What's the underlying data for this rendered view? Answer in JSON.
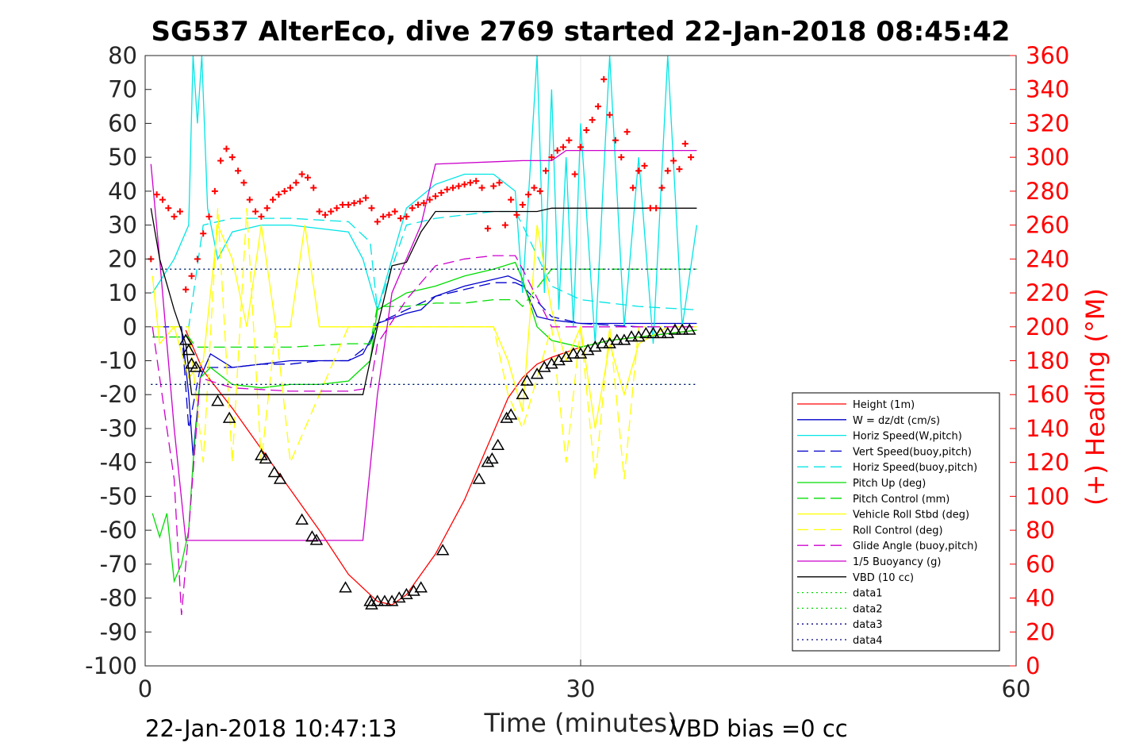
{
  "chart_data": {
    "type": "line",
    "title": "SG537 AlterEco, dive 2769 started 22-Jan-2018 08:45:42",
    "xlabel": "Time (minutes)",
    "ylabel": "",
    "y2label": "(+) Heading (°M)",
    "xlim": [
      0,
      60
    ],
    "ylim": [
      -100,
      80
    ],
    "y2lim": [
      0,
      360
    ],
    "xticks": [
      0,
      30,
      60
    ],
    "yticks": [
      80,
      70,
      60,
      50,
      40,
      30,
      20,
      10,
      0,
      -10,
      -20,
      -30,
      -40,
      -50,
      -60,
      -70,
      -80,
      -90,
      -100
    ],
    "y2ticks": [
      360,
      340,
      320,
      300,
      280,
      260,
      240,
      220,
      200,
      180,
      160,
      140,
      120,
      100,
      80,
      60,
      40,
      20,
      0
    ],
    "grid": "x-only",
    "legend_position": "lower-right",
    "footer_left": "22-Jan-2018 10:47:13",
    "footer_right": "VBD bias =0 cc",
    "colors": {
      "height": "#ff0000",
      "w": "#0000cc",
      "horiz_speed": "#00e5e5",
      "pitch": "#00dd00",
      "roll": "#ffff00",
      "glide": "#cc00cc",
      "buoyancy": "#cc00cc",
      "vbd": "#000000",
      "heading": "#ff0000",
      "data3": "#000080"
    },
    "series": [
      {
        "name": "Height (1m)",
        "style": "solid",
        "color": "#ff0000",
        "x": [
          2.8,
          4,
          6,
          8,
          10,
          12,
          14,
          16,
          17,
          18,
          20,
          22,
          24,
          25,
          26,
          27,
          28,
          30,
          32,
          34,
          36,
          38
        ],
        "y": [
          -1,
          -13,
          -24,
          -36,
          -48,
          -60,
          -73,
          -81,
          -82,
          -79,
          -67,
          -51,
          -31,
          -21,
          -15,
          -11,
          -9,
          -6,
          -4,
          -3,
          -2,
          -1
        ]
      },
      {
        "name": "W = dz/dt (cm/s)",
        "style": "solid",
        "color": "#0000cc",
        "x": [
          0.5,
          2.5,
          3,
          3.3,
          3.8,
          4.5,
          6,
          8,
          10,
          12,
          14,
          15,
          15.5,
          16,
          18,
          19,
          20,
          22,
          24,
          25,
          26,
          27,
          28,
          30,
          32,
          34,
          36,
          38
        ],
        "y": [
          0,
          0,
          -20,
          -38,
          -15,
          -8,
          -12,
          -11,
          -10,
          -10,
          -10,
          -8,
          -4,
          1,
          4,
          5,
          9,
          12,
          14,
          15,
          13,
          3,
          2,
          1,
          1,
          1,
          1,
          1
        ]
      },
      {
        "name": "Horiz Speed(W,pitch)",
        "style": "solid",
        "color": "#00e5e5",
        "x": [
          0.5,
          2,
          3,
          3.3,
          3.6,
          3.9,
          4.3,
          5,
          6,
          8,
          10,
          12,
          14,
          15,
          16,
          18,
          20,
          22,
          24,
          25.5,
          26,
          27,
          27.5,
          28,
          28.5,
          29,
          29.5,
          30,
          31,
          32,
          33,
          34,
          35,
          36,
          37,
          38
        ],
        "y": [
          10,
          20,
          30,
          80,
          60,
          80,
          35,
          20,
          28,
          30,
          30,
          29,
          28,
          20,
          5,
          35,
          42,
          45,
          45,
          40,
          10,
          80,
          10,
          70,
          5,
          50,
          0,
          60,
          -5,
          80,
          0,
          50,
          -5,
          80,
          0,
          30
        ]
      },
      {
        "name": "Vert Speed(buoy,pitch)",
        "style": "dashed",
        "color": "#0000cc",
        "x": [
          0.5,
          2.5,
          3,
          3.8,
          6,
          8,
          10,
          12,
          14,
          15.5,
          16,
          18,
          20,
          22,
          24,
          25.5,
          26,
          28,
          30,
          34,
          38
        ],
        "y": [
          0,
          0,
          -30,
          -12,
          -12,
          -11,
          -11,
          -10,
          -10,
          -5,
          1,
          5,
          9,
          11,
          13,
          13,
          12,
          3,
          1,
          0,
          0
        ]
      },
      {
        "name": "Horiz Speed(buoy,pitch)",
        "style": "dashed",
        "color": "#00e5e5",
        "x": [
          0.5,
          3,
          4,
          6,
          10,
          14,
          15.5,
          16,
          18,
          20,
          22,
          24,
          25.5,
          26,
          28,
          30,
          34,
          38
        ],
        "y": [
          0,
          0,
          30,
          32,
          32,
          31,
          25,
          5,
          30,
          32,
          33,
          34,
          34,
          30,
          12,
          8,
          6,
          5
        ]
      },
      {
        "name": "Pitch Up (deg)",
        "style": "solid",
        "color": "#00dd00",
        "x": [
          0.5,
          1,
          1.5,
          2,
          2.5,
          3,
          3.3,
          3.8,
          4.5,
          6,
          8,
          10,
          12,
          14,
          15.5,
          16,
          18,
          20,
          22,
          24,
          25.5,
          26,
          27,
          28,
          30,
          32,
          34,
          36,
          38
        ],
        "y": [
          -55,
          -62,
          -55,
          -75,
          -70,
          -60,
          -40,
          -15,
          -12,
          -17,
          -18,
          -17,
          -17,
          -16,
          -10,
          5,
          10,
          12,
          15,
          17,
          19,
          14,
          0,
          -4,
          -6,
          -4,
          -3,
          -2,
          -1
        ]
      },
      {
        "name": "Pitch Control (mm)",
        "style": "dashed",
        "color": "#00dd00",
        "x": [
          0.5,
          3,
          3.5,
          5,
          10,
          14,
          15.5,
          16,
          18,
          20,
          22,
          24,
          25.5,
          26,
          28,
          30,
          34,
          38
        ],
        "y": [
          -3,
          -3,
          -6,
          -6,
          -6,
          -5,
          -5,
          6,
          6,
          7,
          7,
          8,
          8,
          6,
          17,
          17,
          17,
          17
        ]
      },
      {
        "name": "Vehicle Roll Stbd (deg)",
        "style": "solid",
        "color": "#ffff00",
        "x": [
          0.5,
          1,
          2,
          3,
          4,
          5,
          6,
          7,
          8,
          9,
          10,
          11,
          12,
          14,
          16,
          18,
          20,
          22,
          24,
          25,
          26,
          27,
          28,
          29,
          30,
          31,
          32,
          33,
          34,
          36,
          38
        ],
        "y": [
          15,
          -5,
          0,
          -15,
          -10,
          30,
          20,
          0,
          30,
          0,
          0,
          30,
          0,
          0,
          0,
          0,
          0,
          0,
          0,
          -10,
          -25,
          30,
          5,
          -10,
          0,
          -30,
          -5,
          -20,
          -5,
          0,
          0
        ]
      },
      {
        "name": "Roll Control (deg)",
        "style": "dashed",
        "color": "#ffff00",
        "x": [
          0.5,
          3,
          4,
          5,
          6,
          7,
          8,
          9,
          10,
          14,
          18,
          22,
          24,
          25,
          26,
          28,
          29,
          30,
          31,
          32,
          33,
          34,
          36,
          38
        ],
        "y": [
          0,
          0,
          -40,
          35,
          -40,
          35,
          -40,
          0,
          -40,
          0,
          0,
          0,
          0,
          -20,
          -30,
          0,
          -40,
          0,
          -45,
          0,
          -45,
          0,
          0,
          0
        ]
      },
      {
        "name": "Glide Angle (buoy,pitch)",
        "style": "dashed",
        "color": "#cc00cc",
        "x": [
          0.5,
          1.5,
          2,
          2.5,
          3,
          3.8,
          6,
          10,
          14,
          15.5,
          16,
          18,
          20,
          22,
          24,
          25.5,
          26,
          28,
          30,
          34,
          38
        ],
        "y": [
          0,
          -30,
          -45,
          -85,
          -60,
          -15,
          -18,
          -19,
          -19,
          -18,
          -5,
          8,
          18,
          20,
          21,
          21,
          17,
          0,
          0,
          0,
          0
        ]
      },
      {
        "name": "1/5 Buoyancy (g)",
        "style": "solid",
        "color": "#cc00cc",
        "x": [
          0.4,
          1,
          2,
          2.8,
          3.2,
          4,
          10,
          14,
          15,
          16,
          17,
          18,
          19,
          20,
          26,
          27,
          28,
          29,
          30,
          34,
          38
        ],
        "y": [
          48,
          20,
          -30,
          -63,
          -63,
          -63,
          -63,
          -63,
          -63,
          -20,
          10,
          20,
          30,
          48,
          49,
          49,
          49,
          52,
          52,
          52,
          52
        ]
      },
      {
        "name": "VBD (10 cc)",
        "style": "solid",
        "color": "#000000",
        "x": [
          0.4,
          1,
          2,
          2.8,
          3.2,
          5,
          10,
          14,
          15,
          16,
          17,
          18,
          19,
          20,
          26,
          27,
          28,
          30,
          34,
          38
        ],
        "y": [
          35,
          20,
          5,
          -5,
          -20,
          -20,
          -20,
          -20,
          -20,
          0,
          18,
          19,
          28,
          34,
          34,
          34,
          35,
          35,
          35,
          35
        ]
      },
      {
        "name": "data1",
        "style": "dotted",
        "color": "#00dd00",
        "x": [
          0.4,
          38
        ],
        "y": [
          17,
          17
        ]
      },
      {
        "name": "data2",
        "style": "dotted",
        "color": "#00dd00",
        "x": [
          0.4,
          38
        ],
        "y": [
          -17,
          -17
        ]
      },
      {
        "name": "data3",
        "style": "dotted",
        "color": "#000080",
        "x": [
          0.4,
          38
        ],
        "y": [
          17,
          17
        ]
      },
      {
        "name": "data4",
        "style": "dotted",
        "color": "#000080",
        "x": [
          0.4,
          38
        ],
        "y": [
          -17,
          -17
        ]
      }
    ],
    "heading_marks": {
      "x": [
        0.4,
        0.8,
        1.2,
        1.6,
        2,
        2.4,
        2.8,
        3.2,
        3.6,
        4,
        4.4,
        4.8,
        5.2,
        5.6,
        6,
        6.4,
        6.8,
        7.2,
        7.6,
        8,
        8.4,
        8.8,
        9.2,
        9.6,
        10,
        10.4,
        10.8,
        11.2,
        11.6,
        12,
        12.4,
        12.8,
        13.2,
        13.6,
        14,
        14.4,
        14.8,
        15.2,
        15.6,
        16,
        16.4,
        16.8,
        17.2,
        17.6,
        18,
        18.4,
        18.8,
        19.2,
        19.6,
        20,
        20.4,
        20.8,
        21.2,
        21.6,
        22,
        22.4,
        22.8,
        23.2,
        23.6,
        24,
        24.4,
        24.8,
        25.2,
        25.6,
        26,
        26.4,
        26.8,
        27.2,
        27.6,
        28,
        28.4,
        28.8,
        29.2,
        29.6,
        30,
        30.4,
        30.8,
        31.2,
        31.6,
        32,
        32.4,
        32.8,
        33.2,
        33.6,
        34,
        34.4,
        34.8,
        35.2,
        35.6,
        36,
        36.4,
        36.8,
        37.2,
        37.6
      ],
      "y": [
        240,
        278,
        275,
        270,
        265,
        268,
        222,
        230,
        240,
        255,
        265,
        280,
        298,
        305,
        300,
        292,
        285,
        275,
        268,
        265,
        270,
        275,
        278,
        280,
        282,
        285,
        290,
        288,
        282,
        268,
        266,
        268,
        270,
        272,
        272,
        273,
        274,
        276,
        270,
        262,
        265,
        266,
        268,
        264,
        265,
        270,
        272,
        273,
        275,
        277,
        279,
        281,
        282,
        283,
        284,
        285,
        286,
        282,
        258,
        283,
        285,
        260,
        275,
        266,
        272,
        278,
        282,
        280,
        292,
        300,
        304,
        306,
        310,
        290,
        306,
        316,
        322,
        330,
        346,
        325,
        310,
        300,
        315,
        282,
        292,
        295,
        270,
        270,
        282,
        292,
        298,
        293,
        308,
        300
      ]
    },
    "profile_marks": {
      "x": [
        2.8,
        3,
        3.2,
        3.5,
        5,
        5.8,
        8,
        8.3,
        8.9,
        9.3,
        10.8,
        11.5,
        11.8,
        13.8,
        15.5,
        15.6,
        16,
        16.5,
        17,
        17.5,
        18,
        18.5,
        19,
        20.5,
        23,
        23.6,
        23.9,
        24.3,
        24.9,
        25.2,
        26,
        26.3,
        27,
        27.5,
        28,
        28.5,
        29,
        29.5,
        30,
        30.5,
        31,
        31.5,
        32,
        32.5,
        33,
        33.5,
        34,
        34.5,
        35,
        35.5,
        36,
        36.5,
        37,
        37.5
      ],
      "y": [
        -4,
        -7,
        -11,
        -12,
        -22,
        -27,
        -38,
        -39,
        -43,
        -45,
        -57,
        -62,
        -63,
        -77,
        -81,
        -82,
        -81,
        -81,
        -81,
        -80,
        -79,
        -78,
        -77,
        -66,
        -45,
        -40,
        -39,
        -35,
        -27,
        -26,
        -20,
        -16,
        -14,
        -12,
        -11,
        -10,
        -9,
        -8,
        -8,
        -7,
        -6,
        -5,
        -5,
        -4,
        -4,
        -3,
        -3,
        -2,
        -2,
        -2,
        -2,
        -1,
        -1,
        -1
      ]
    }
  }
}
